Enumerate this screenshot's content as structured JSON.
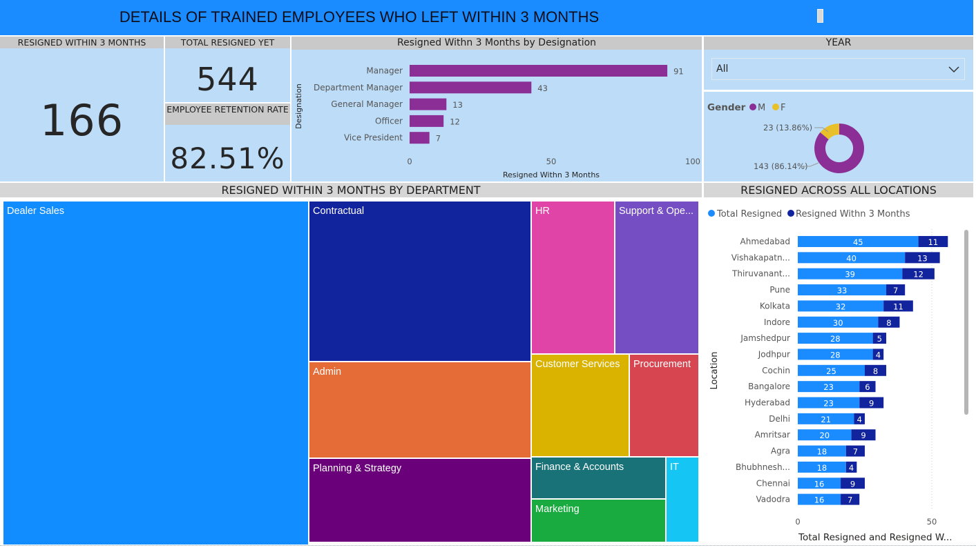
{
  "header": {
    "title": "DETAILS OF TRAINED EMPLOYEES WHO LEFT WITHIN 3 MONTHS"
  },
  "kpis": {
    "resigned_3m": {
      "label": "RESIGNED WITHIN 3 MONTHS",
      "value": "166"
    },
    "total_resigned": {
      "label": "TOTAL RESIGNED YET",
      "value": "544"
    },
    "retention": {
      "label": "EMPLOYEE RETENTION RATE",
      "value": "82.51%"
    }
  },
  "colors": {
    "designation_bar": "#8b2f96",
    "male": "#8b2f96",
    "female": "#e8c02a",
    "total_resigned": "#1a8cff",
    "resigned_3m": "#12239e"
  },
  "year_slicer": {
    "title": "YEAR",
    "value": "All"
  },
  "gender": {
    "title": "Gender",
    "legend": [
      "M",
      "F"
    ],
    "label_f": "23 (13.86%)",
    "label_m": "143 (86.14%)"
  },
  "treemap": {
    "title": "RESIGNED WITHIN 3 MONTHS BY DEPARTMENT",
    "tiles": [
      {
        "label": "Dealer Sales",
        "color": "#118dff"
      },
      {
        "label": "Contractual",
        "color": "#12239e"
      },
      {
        "label": "Admin",
        "color": "#e66c37"
      },
      {
        "label": "Planning & Strategy",
        "color": "#6b007b"
      },
      {
        "label": "HR",
        "color": "#e044a7"
      },
      {
        "label": "Support & Ope...",
        "color": "#744ec2"
      },
      {
        "label": "Customer Services",
        "color": "#d9b300"
      },
      {
        "label": "Procurement",
        "color": "#d64550"
      },
      {
        "label": "Finance & Accounts",
        "color": "#197278"
      },
      {
        "label": "IT",
        "color": "#15c6f4"
      },
      {
        "label": "Marketing",
        "color": "#1aab40"
      }
    ]
  },
  "locations": {
    "title": "RESIGNED ACROSS ALL LOCATIONS"
  },
  "chart_data": [
    {
      "type": "bar",
      "orientation": "horizontal",
      "title": "Resigned Withn 3 Months by Designation",
      "xlabel": "Resigned Withn 3 Months",
      "ylabel": "Designation",
      "categories": [
        "Manager",
        "Department Manager",
        "General Manager",
        "Officer",
        "Vice President"
      ],
      "values": [
        91,
        43,
        13,
        12,
        7
      ],
      "xlim": [
        0,
        100
      ],
      "xticks": [
        0,
        50,
        100
      ]
    },
    {
      "type": "pie",
      "title": "Gender",
      "categories": [
        "M",
        "F"
      ],
      "values": [
        143,
        23
      ],
      "percentages": [
        86.14,
        13.86
      ]
    },
    {
      "type": "heatmap",
      "title": "RESIGNED WITHIN 3 MONTHS BY DEPARTMENT",
      "categories": [
        "Dealer Sales",
        "Contractual",
        "Admin",
        "Planning & Strategy",
        "HR",
        "Support & Ope...",
        "Customer Services",
        "Procurement",
        "Finance & Accounts",
        "IT",
        "Marketing"
      ]
    },
    {
      "type": "bar",
      "orientation": "horizontal",
      "stacked": true,
      "title": "RESIGNED ACROSS ALL LOCATIONS",
      "xlabel": "Total Resigned and Resigned W...",
      "ylabel": "Location",
      "categories": [
        "Ahmedabad",
        "Vishakapatn...",
        "Thiruvanant...",
        "Pune",
        "Kolkata",
        "Indore",
        "Jamshedpur",
        "Jodhpur",
        "Cochin",
        "Bangalore",
        "Hyderabad",
        "Delhi",
        "Amritsar",
        "Agra",
        "Bhubhnesh...",
        "Chennai",
        "Vadodra"
      ],
      "series": [
        {
          "name": "Total Resigned",
          "values": [
            45,
            40,
            39,
            33,
            32,
            30,
            28,
            28,
            25,
            23,
            23,
            21,
            20,
            18,
            18,
            16,
            16
          ]
        },
        {
          "name": "Resigned Withn 3 Months",
          "values": [
            11,
            13,
            12,
            7,
            11,
            8,
            5,
            4,
            8,
            6,
            9,
            4,
            9,
            7,
            4,
            9,
            7
          ]
        }
      ],
      "xticks": [
        0,
        50
      ],
      "legend": "top"
    }
  ]
}
